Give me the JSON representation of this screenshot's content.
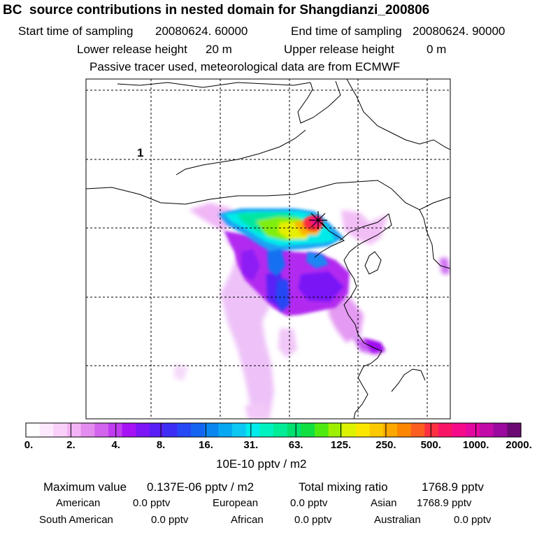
{
  "header": {
    "title": "BC  source contributions in nested domain for Shangdianzi_200806",
    "start_label": "Start time of sampling",
    "start_value": "20080624. 60000",
    "end_label": "End time of sampling",
    "end_value": "20080624. 90000",
    "lower_label": "Lower release height",
    "lower_value": "20 m",
    "upper_label": "Upper release height",
    "upper_value": "0 m",
    "note": "Passive tracer used, meteorological data are from ECMWF"
  },
  "chart_data": {
    "type": "heatmap",
    "map_label": "1",
    "receptor_marker": "asterisk",
    "grid": true,
    "colorbar": {
      "ticks": [
        "0.",
        "2.",
        "4.",
        "8.",
        "16.",
        "31.",
        "63.",
        "125.",
        "250.",
        "500.",
        "1000.",
        "2000."
      ],
      "unit_label": "10E-10 pptv / m2",
      "colors": [
        "#ffffff",
        "#fde9fd",
        "#f9d0fa",
        "#f3b2f5",
        "#e58cf0",
        "#d264ee",
        "#c03cf0",
        "#a512f5",
        "#7d16f7",
        "#5a1ef6",
        "#3d2ef5",
        "#2648f5",
        "#1464f2",
        "#0a86f0",
        "#06a8f2",
        "#0dc8f2",
        "#00ecec",
        "#00f2c0",
        "#00ec96",
        "#00e070",
        "#10e040",
        "#50ea10",
        "#9ef000",
        "#dcf200",
        "#fbe600",
        "#fcc800",
        "#fca800",
        "#fc8600",
        "#fc5e20",
        "#fc3040",
        "#fa1466",
        "#f60a8a",
        "#e208a0",
        "#c20aa8",
        "#9a0a9e",
        "#6a0a72"
      ]
    }
  },
  "footer": {
    "max_label": "Maximum value",
    "max_value": "0.137E-06 pptv / m2",
    "total_label": "Total mixing ratio",
    "total_value": "1768.9 pptv",
    "american_label": "American",
    "american_value": "0.0 pptv",
    "european_label": "European",
    "european_value": "0.0 pptv",
    "asian_label": "Asian",
    "asian_value": "1768.9 pptv",
    "southam_label": "South American",
    "southam_value": "0.0 pptv",
    "african_label": "African",
    "african_value": "0.0 pptv",
    "australian_label": "Australian",
    "australian_value": "0.0 pptv"
  }
}
